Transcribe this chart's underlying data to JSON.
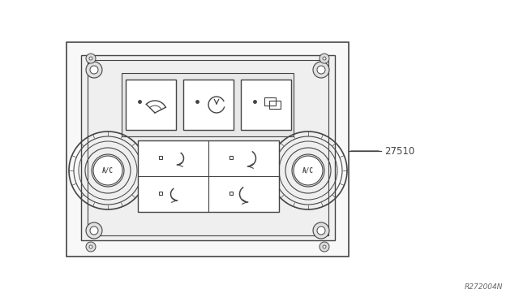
{
  "bg_color": "#ffffff",
  "line_color": "#444444",
  "label_27510": "27510",
  "label_ref": "R272004N",
  "figsize": [
    6.4,
    3.72
  ],
  "dpi": 100
}
